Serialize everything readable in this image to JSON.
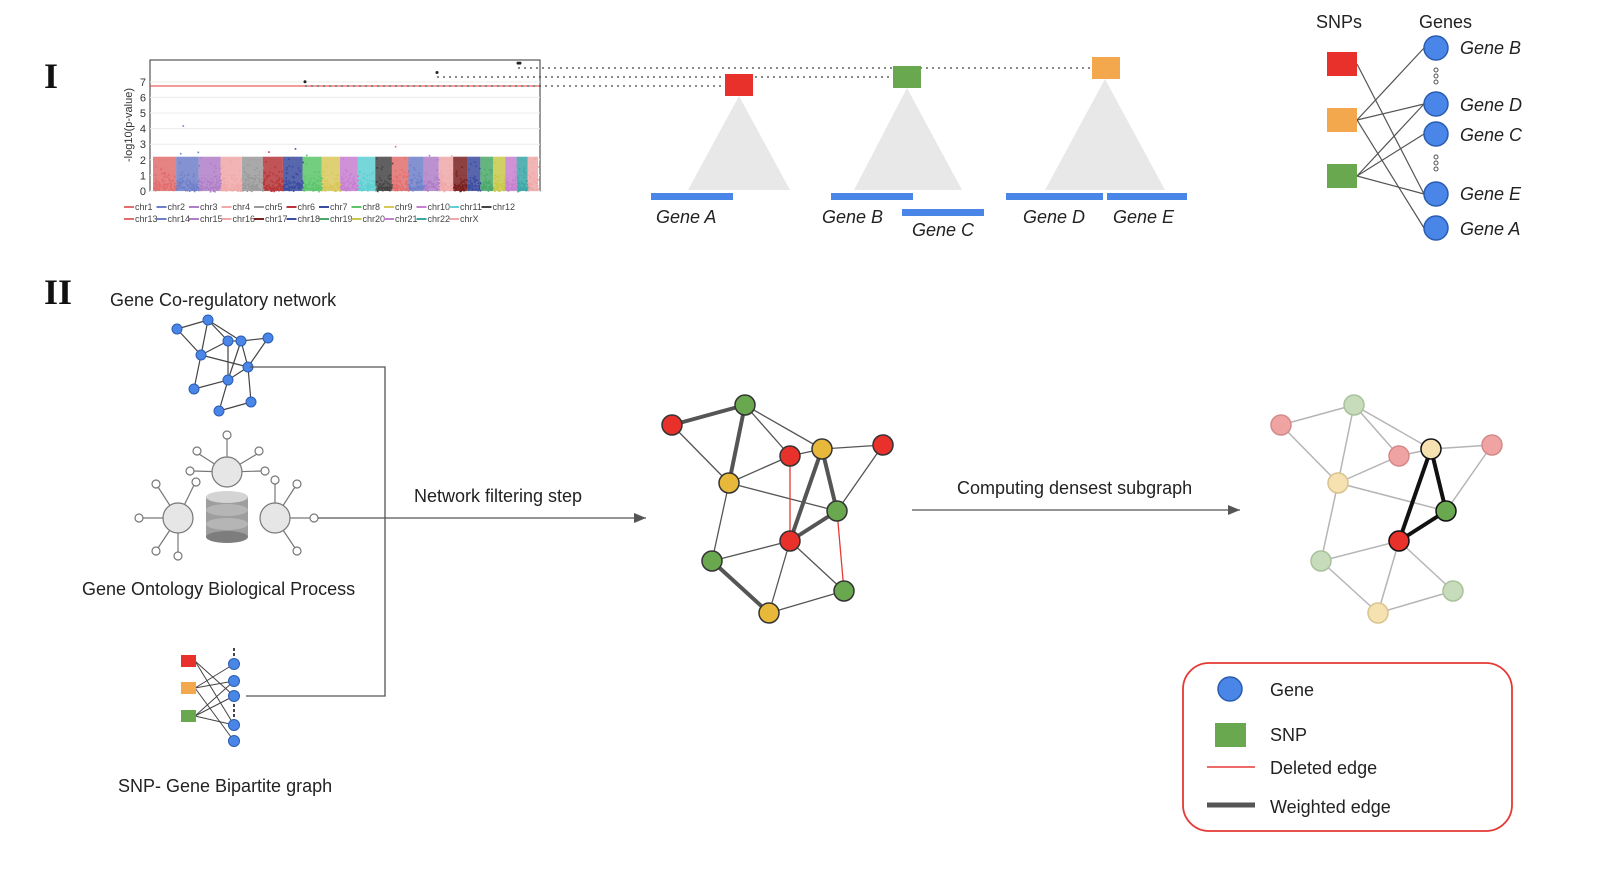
{
  "section_labels": {
    "part1": "I",
    "part2": "II"
  },
  "manhattan": {
    "ylabel": "-log10(p-value)",
    "yticks": [
      "0",
      "1",
      "2",
      "3",
      "4",
      "5",
      "6",
      "7"
    ],
    "chromosomes": [
      "chr1",
      "chr2",
      "chr3",
      "chr4",
      "chr5",
      "chr6",
      "chr7",
      "chr8",
      "chr9",
      "chr10",
      "chr11",
      "chr12",
      "chr13",
      "chr14",
      "chr15",
      "chr16",
      "chr17",
      "chr18",
      "chr19",
      "chr20",
      "chr21",
      "chr22",
      "chrX"
    ],
    "chromosome_colors": [
      "#e26d6d",
      "#6f7fc9",
      "#b07ec8",
      "#f0a8a8",
      "#9a9a9a",
      "#b6363a",
      "#3b4c9f",
      "#5cc56a",
      "#d8c85a",
      "#c77fd0",
      "#5fcfd2",
      "#444444",
      "#e26d6d",
      "#6f7fc9",
      "#b07ec8",
      "#f0a8a8",
      "#7a2020",
      "#3b4c9f",
      "#4aa86a",
      "#c8c84a",
      "#c77fd0",
      "#3aa6a6",
      "#f0a8a8"
    ],
    "threshold_color": "#e53935"
  },
  "gene_blocks": {
    "genes": [
      "Gene A",
      "Gene B",
      "Gene C",
      "Gene D",
      "Gene E"
    ]
  },
  "bipartite_top": {
    "snps_header": "SNPs",
    "genes_header": "Genes",
    "gene_labels": [
      "Gene B",
      "Gene D",
      "Gene C",
      "Gene E",
      "Gene A"
    ]
  },
  "snp_colors": {
    "red": "#e8312a",
    "orange": "#f4a84e",
    "green": "#6aa84f"
  },
  "gene_color": "#4a86e8",
  "part2": {
    "coreg_title": "Gene Co-regulatory network",
    "go_title": "Gene Ontology Biological Process",
    "bipartite_title": "SNP- Gene Bipartite graph",
    "filter_step": "Network filtering step",
    "densest_step": "Computing densest subgraph"
  },
  "legend": {
    "gene": "Gene",
    "snp": "SNP",
    "deleted_edge": "Deleted edge",
    "weighted_edge": "Weighted edge",
    "border_color": "#e53935"
  }
}
